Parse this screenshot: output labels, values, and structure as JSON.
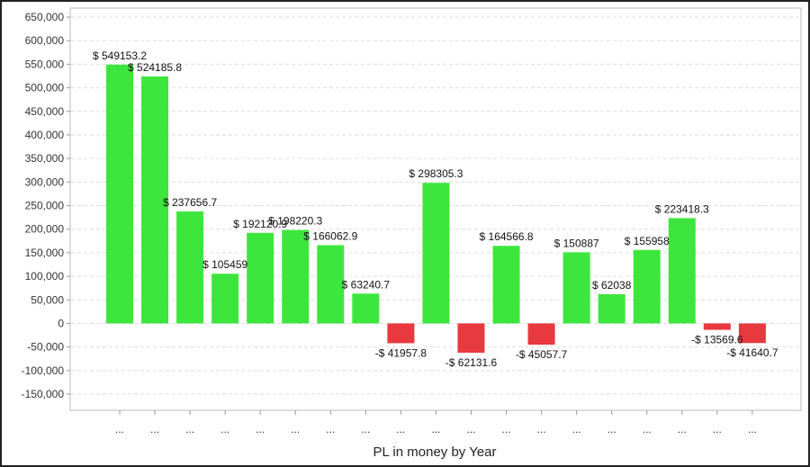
{
  "chart_data": {
    "type": "bar",
    "xlabel": "PL in money by Year",
    "ylabel": "",
    "ylim": [
      -150000,
      650000
    ],
    "ytick_step": 50000,
    "grid": true,
    "colors": {
      "positive": "#3de63d",
      "negative": "#e8393f"
    },
    "categories": [
      "...",
      "...",
      "...",
      "...",
      "...",
      "...",
      "...",
      "...",
      "...",
      "...",
      "...",
      "...",
      "...",
      "...",
      "...",
      "...",
      "...",
      "...",
      "..."
    ],
    "values": [
      549153.2,
      524185.8,
      237656.7,
      105459,
      192120.9,
      198220.3,
      166062.9,
      63240.7,
      -41957.8,
      298305.3,
      -62131.6,
      164566.8,
      -45057.7,
      150887,
      62038,
      155958,
      223418.3,
      -13569.6,
      -41640.7
    ],
    "data_labels": [
      "$ 549153.2",
      "$ 524185.8",
      "$ 237656.7",
      "$ 105459",
      "$ 192120.9",
      "$ 198220.3",
      "$ 166062.9",
      "$ 63240.7",
      "-$ 41957.8",
      "$ 298305.3",
      "-$ 62131.6",
      "$ 164566.8",
      "-$ 45057.7",
      "$ 150887",
      "$ 62038",
      "$ 155958",
      "$ 223418.3",
      "-$ 13569.6",
      "-$ 41640.7"
    ]
  }
}
